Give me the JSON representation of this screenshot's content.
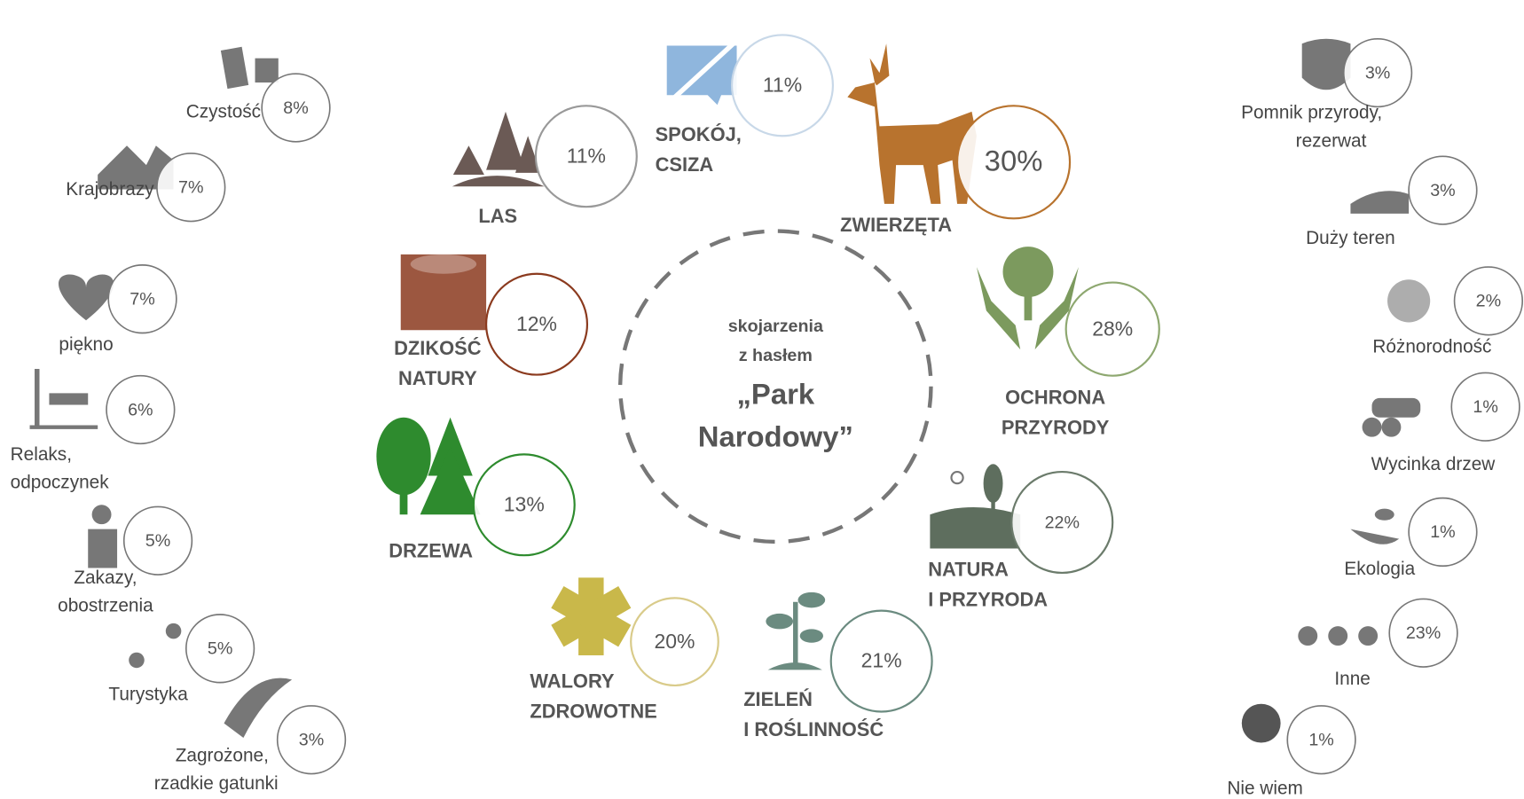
{
  "center": {
    "lines": [
      "skojarzenia",
      "z hasłem"
    ],
    "title": [
      "„Park",
      "Narodowy”"
    ]
  },
  "items": [
    {
      "label": [
        "LAS"
      ],
      "value": "11%"
    },
    {
      "label": [
        "SPOKÓJ,",
        "CSIZA"
      ],
      "value": "11%"
    },
    {
      "label": [
        "ZWIERZĘTA"
      ],
      "value": "30%"
    },
    {
      "label": [
        "DZIKOŚĆ",
        "NATURY"
      ],
      "value": "12%"
    },
    {
      "label": [
        "OCHRONA",
        "PRZYRODY"
      ],
      "value": "28%"
    },
    {
      "label": [
        "DRZEWA"
      ],
      "value": "13%"
    },
    {
      "label": [
        "NATURA",
        "I PRZYRODA"
      ],
      "value": "22%"
    },
    {
      "label": [
        "WALORY",
        "ZDROWOTNE"
      ],
      "value": "20%"
    },
    {
      "label": [
        "ZIELEŃ",
        "I ROŚLINNOŚĆ"
      ],
      "value": "21%"
    },
    {
      "label": [
        "Czystość"
      ],
      "value": "8%"
    },
    {
      "label": [
        "Krajobrazy"
      ],
      "value": "7%"
    },
    {
      "label": [
        "piękno"
      ],
      "value": "7%"
    },
    {
      "label": [
        "Relaks,",
        "odpoczynek"
      ],
      "value": "6%"
    },
    {
      "label": [
        "Zakazy,",
        "obostrzenia"
      ],
      "value": "5%"
    },
    {
      "label": [
        "Turystyka"
      ],
      "value": "5%"
    },
    {
      "label": [
        "Zagrożone,",
        "rzadkie gatunki"
      ],
      "value": "3%"
    },
    {
      "label": [
        "Pomnik przyrody,",
        "rezerwat"
      ],
      "value": "3%"
    },
    {
      "label": [
        "Duży teren"
      ],
      "value": "3%"
    },
    {
      "label": [
        "Różnorodność"
      ],
      "value": "2%"
    },
    {
      "label": [
        "Wycinka drzew"
      ],
      "value": "1%"
    },
    {
      "label": [
        "Ekologia"
      ],
      "value": "1%"
    },
    {
      "label": [
        "Inne"
      ],
      "value": "23%"
    },
    {
      "label": [
        "Nie wiem"
      ],
      "value": "1%"
    }
  ]
}
